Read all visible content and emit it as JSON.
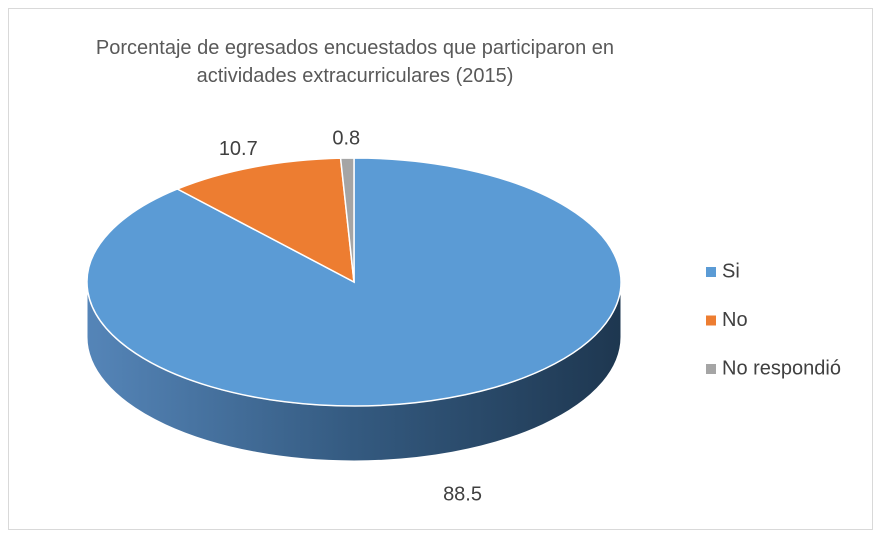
{
  "chart_data": {
    "type": "pie3d",
    "title": "Porcentaje de egresados encuestados que participaron en actividades extracurriculares (2015)",
    "categories": [
      "Si",
      "No",
      "No respondió"
    ],
    "values": [
      88.5,
      10.7,
      0.8
    ],
    "colors": [
      "#5b9bd5",
      "#ed7d31",
      "#a5a5a5"
    ],
    "legend": "right"
  }
}
